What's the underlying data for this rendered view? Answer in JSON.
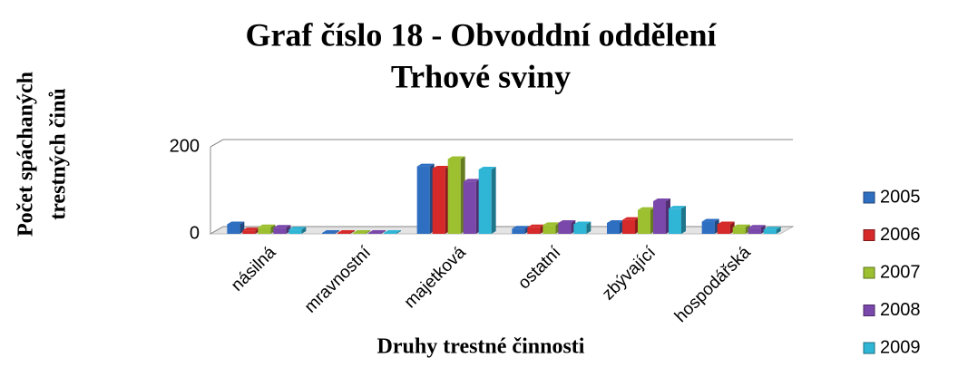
{
  "chart_data": {
    "type": "bar",
    "title": "Graf číslo 18 - Obvoddní oddělení",
    "subtitle": "Trhové sviny",
    "y_label": [
      "Počet spáchaných",
      "trestných činů"
    ],
    "x_label": "Druhy trestné činnosti",
    "categories": [
      "násilná",
      "mravnostní",
      "majetková",
      "ostatní",
      "zbývající",
      "hospodářská"
    ],
    "series": [
      {
        "name": "2005",
        "color": "#2f6fc2",
        "values": [
          22,
          2,
          155,
          12,
          25,
          28
        ]
      },
      {
        "name": "2006",
        "color": "#d62a2a",
        "values": [
          8,
          2,
          150,
          15,
          32,
          22
        ]
      },
      {
        "name": "2007",
        "color": "#9cc030",
        "values": [
          15,
          2,
          172,
          20,
          55,
          15
        ]
      },
      {
        "name": "2008",
        "color": "#7a48aa",
        "values": [
          14,
          2,
          120,
          25,
          75,
          14
        ]
      },
      {
        "name": "2009",
        "color": "#2fb6d6",
        "values": [
          10,
          2,
          148,
          22,
          58,
          10
        ]
      }
    ],
    "ylim": [
      0,
      200
    ],
    "yticks": [
      0,
      200
    ],
    "grid": true,
    "legend": "right"
  }
}
